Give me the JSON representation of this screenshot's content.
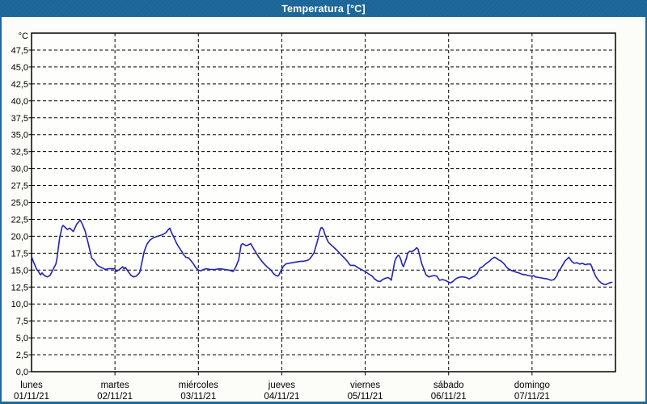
{
  "window": {
    "title": "Temperatura [°C]"
  },
  "colors": {
    "titlebar_bg": "#1e699c",
    "titlebar_text": "#ffffff",
    "frame_border": "#1e699c",
    "background": "#fcfdf8",
    "plot_bg": "#fefefc",
    "plot_border": "#000000",
    "grid": "#000000",
    "line": "#2323b4",
    "label": "#000000"
  },
  "chart_data": {
    "type": "line",
    "title": "Temperatura [°C]",
    "y_unit_label": "°C",
    "ylim": [
      0,
      50
    ],
    "ytick_step": 2.5,
    "ytick_labels": [
      "0,0",
      "2,5",
      "5,0",
      "7,5",
      "10,0",
      "12,5",
      "15,0",
      "17,5",
      "20,0",
      "22,5",
      "25,0",
      "27,5",
      "30,0",
      "32,5",
      "35,0",
      "37,5",
      "40,0",
      "42,5",
      "45,0",
      "47,5"
    ],
    "grid": "dashed",
    "xlim_hours": [
      0,
      168
    ],
    "x_days": [
      {
        "name": "lunes",
        "date": "01/11/21"
      },
      {
        "name": "martes",
        "date": "02/11/21"
      },
      {
        "name": "miércoles",
        "date": "03/11/21"
      },
      {
        "name": "jueves",
        "date": "04/11/21"
      },
      {
        "name": "viernes",
        "date": "05/11/21"
      },
      {
        "name": "sábado",
        "date": "06/11/21"
      },
      {
        "name": "domingo",
        "date": "07/11/21"
      }
    ],
    "series": [
      {
        "name": "Temperatura",
        "color": "#2323b4",
        "points_hour_degC": [
          [
            0,
            17.0
          ],
          [
            0.5,
            16.3
          ],
          [
            1,
            15.7
          ],
          [
            1.5,
            15.1
          ],
          [
            2,
            14.8
          ],
          [
            2.3,
            14.5
          ],
          [
            2.6,
            14.3
          ],
          [
            3,
            14.6
          ],
          [
            3.3,
            14.4
          ],
          [
            3.7,
            14.2
          ],
          [
            4.5,
            14.0
          ],
          [
            5.3,
            14.2
          ],
          [
            6,
            14.9
          ],
          [
            7,
            15.9
          ],
          [
            7.3,
            16.7
          ],
          [
            7.6,
            17.9
          ],
          [
            8.1,
            19.8
          ],
          [
            8.8,
            21.4
          ],
          [
            9.1,
            21.6
          ],
          [
            9.5,
            21.4
          ],
          [
            10.3,
            21.0
          ],
          [
            11,
            21.2
          ],
          [
            12,
            20.7
          ],
          [
            13,
            21.8
          ],
          [
            14,
            22.4
          ],
          [
            14.6,
            21.8
          ],
          [
            15.4,
            20.8
          ],
          [
            16.1,
            19.4
          ],
          [
            16.9,
            17.7
          ],
          [
            17.3,
            16.8
          ],
          [
            18.1,
            16.4
          ],
          [
            18.8,
            15.8
          ],
          [
            19.6,
            15.5
          ],
          [
            20.5,
            15.3
          ],
          [
            21.2,
            15.1
          ],
          [
            22.1,
            15.2
          ],
          [
            23,
            15.2
          ],
          [
            24,
            15.2
          ],
          [
            24.3,
            14.8
          ],
          [
            25.1,
            15.0
          ],
          [
            25.8,
            15.3
          ],
          [
            26.2,
            15.5
          ],
          [
            26.6,
            15.2
          ],
          [
            27,
            15.4
          ],
          [
            27.8,
            14.8
          ],
          [
            28.5,
            14.3
          ],
          [
            29.3,
            14.0
          ],
          [
            30.1,
            14.1
          ],
          [
            30.9,
            14.5
          ],
          [
            31.3,
            14.9
          ],
          [
            31.6,
            15.8
          ],
          [
            32,
            16.7
          ],
          [
            32.4,
            17.7
          ],
          [
            32.8,
            18.3
          ],
          [
            33.3,
            18.9
          ],
          [
            34,
            19.4
          ],
          [
            35.1,
            19.8
          ],
          [
            36.3,
            20.0
          ],
          [
            37.5,
            20.2
          ],
          [
            38.6,
            20.5
          ],
          [
            39.4,
            21.0
          ],
          [
            39.8,
            21.2
          ],
          [
            40.2,
            20.6
          ],
          [
            41,
            19.8
          ],
          [
            41.7,
            19.0
          ],
          [
            42.5,
            18.3
          ],
          [
            43.3,
            17.7
          ],
          [
            43.7,
            17.3
          ],
          [
            44.4,
            16.9
          ],
          [
            45.2,
            16.8
          ],
          [
            46,
            16.3
          ],
          [
            46.6,
            15.9
          ],
          [
            47.2,
            15.4
          ],
          [
            48,
            15.0
          ],
          [
            48.7,
            14.9
          ],
          [
            49.5,
            15.1
          ],
          [
            50.3,
            15.2
          ],
          [
            51.4,
            15.1
          ],
          [
            52.8,
            15.1
          ],
          [
            54.2,
            15.2
          ],
          [
            55.6,
            15.1
          ],
          [
            56.8,
            15.0
          ],
          [
            58,
            14.8
          ],
          [
            58.8,
            15.5
          ],
          [
            59.6,
            16.5
          ],
          [
            60.3,
            18.7
          ],
          [
            60.7,
            18.9
          ],
          [
            61.4,
            18.7
          ],
          [
            61.9,
            18.6
          ],
          [
            62.6,
            18.8
          ],
          [
            63.1,
            18.9
          ],
          [
            63.5,
            18.5
          ],
          [
            64.2,
            17.9
          ],
          [
            65.4,
            16.9
          ],
          [
            66.6,
            16.1
          ],
          [
            67.7,
            15.5
          ],
          [
            68.9,
            15.0
          ],
          [
            69.6,
            14.5
          ],
          [
            70.3,
            14.2
          ],
          [
            70.8,
            14.1
          ],
          [
            71.2,
            14.3
          ],
          [
            71.9,
            15.1
          ],
          [
            72.5,
            15.6
          ],
          [
            73.1,
            15.9
          ],
          [
            73.9,
            16.0
          ],
          [
            75.1,
            16.1
          ],
          [
            76.3,
            16.2
          ],
          [
            77.4,
            16.3
          ],
          [
            78.2,
            16.3
          ],
          [
            79,
            16.4
          ],
          [
            79.7,
            16.5
          ],
          [
            80.1,
            16.7
          ],
          [
            80.7,
            17.1
          ],
          [
            81.3,
            17.6
          ],
          [
            81.7,
            18.3
          ],
          [
            82.1,
            19.0
          ],
          [
            82.5,
            19.8
          ],
          [
            82.8,
            20.5
          ],
          [
            83.2,
            21.2
          ],
          [
            83.5,
            21.3
          ],
          [
            84,
            21.0
          ],
          [
            84.4,
            20.3
          ],
          [
            84.8,
            19.8
          ],
          [
            85.2,
            19.3
          ],
          [
            85.6,
            19.0
          ],
          [
            86.7,
            18.5
          ],
          [
            87.9,
            17.9
          ],
          [
            89,
            17.3
          ],
          [
            90.2,
            16.7
          ],
          [
            91,
            16.2
          ],
          [
            91.4,
            15.9
          ],
          [
            91.8,
            15.7
          ],
          [
            92.9,
            15.7
          ],
          [
            94.1,
            15.3
          ],
          [
            95.2,
            15.0
          ],
          [
            96,
            14.8
          ],
          [
            96.8,
            14.5
          ],
          [
            98,
            14.1
          ],
          [
            98.7,
            13.7
          ],
          [
            99.5,
            13.4
          ],
          [
            100.3,
            13.3
          ],
          [
            101,
            13.6
          ],
          [
            101.8,
            13.8
          ],
          [
            102.6,
            13.9
          ],
          [
            103.2,
            13.7
          ],
          [
            103.5,
            13.5
          ],
          [
            104,
            14.9
          ],
          [
            104.5,
            16.3
          ],
          [
            104.9,
            16.8
          ],
          [
            105.5,
            17.2
          ],
          [
            105.8,
            17.1
          ],
          [
            106.3,
            16.5
          ],
          [
            106.6,
            15.9
          ],
          [
            107,
            15.5
          ],
          [
            107.4,
            16.1
          ],
          [
            107.9,
            16.8
          ],
          [
            108.2,
            17.5
          ],
          [
            108.8,
            17.8
          ],
          [
            109.3,
            17.7
          ],
          [
            110,
            17.9
          ],
          [
            110.4,
            18.1
          ],
          [
            110.8,
            18.3
          ],
          [
            111.2,
            18.1
          ],
          [
            111.5,
            17.5
          ],
          [
            111.9,
            16.7
          ],
          [
            112.3,
            15.9
          ],
          [
            112.7,
            15.4
          ],
          [
            113.1,
            14.8
          ],
          [
            113.5,
            14.3
          ],
          [
            114.3,
            14.0
          ],
          [
            115,
            14.1
          ],
          [
            115.9,
            14.2
          ],
          [
            116.6,
            14.1
          ],
          [
            117.4,
            13.5
          ],
          [
            118.2,
            13.6
          ],
          [
            119,
            13.5
          ],
          [
            119.7,
            13.3
          ],
          [
            120.5,
            13.1
          ],
          [
            121.2,
            13.3
          ],
          [
            122,
            13.7
          ],
          [
            122.8,
            13.9
          ],
          [
            123.6,
            14.0
          ],
          [
            124.3,
            14.0
          ],
          [
            125.1,
            13.9
          ],
          [
            125.9,
            13.7
          ],
          [
            126.6,
            13.9
          ],
          [
            127.4,
            14.1
          ],
          [
            128.2,
            14.5
          ],
          [
            129,
            15.3
          ],
          [
            129.8,
            15.5
          ],
          [
            130.6,
            15.9
          ],
          [
            131.7,
            16.3
          ],
          [
            132.5,
            16.7
          ],
          [
            133.2,
            16.9
          ],
          [
            133.6,
            16.8
          ],
          [
            134.4,
            16.5
          ],
          [
            135.2,
            16.3
          ],
          [
            136,
            15.9
          ],
          [
            136.7,
            15.4
          ],
          [
            137.5,
            15.1
          ],
          [
            138.3,
            14.9
          ],
          [
            139.4,
            14.7
          ],
          [
            140.2,
            14.6
          ],
          [
            141,
            14.4
          ],
          [
            142.2,
            14.3
          ],
          [
            142.9,
            14.2
          ],
          [
            144,
            14.1
          ],
          [
            144.5,
            14.2
          ],
          [
            144.9,
            14.0
          ],
          [
            146.1,
            13.9
          ],
          [
            147.2,
            13.8
          ],
          [
            148.4,
            13.7
          ],
          [
            149.5,
            13.5
          ],
          [
            150.3,
            13.6
          ],
          [
            151.1,
            14.1
          ],
          [
            151.5,
            14.7
          ],
          [
            152.3,
            15.3
          ],
          [
            153,
            15.9
          ],
          [
            153.4,
            16.3
          ],
          [
            154.2,
            16.7
          ],
          [
            154.6,
            16.9
          ],
          [
            155.4,
            16.3
          ],
          [
            156.1,
            16.0
          ],
          [
            156.9,
            16.1
          ],
          [
            157.7,
            15.9
          ],
          [
            158.5,
            16.0
          ],
          [
            159.3,
            15.8
          ],
          [
            160,
            15.9
          ],
          [
            160.8,
            15.9
          ],
          [
            161.2,
            15.5
          ],
          [
            161.6,
            14.9
          ],
          [
            162.3,
            14.1
          ],
          [
            163.1,
            13.5
          ],
          [
            163.9,
            13.1
          ],
          [
            164.7,
            12.9
          ],
          [
            165.4,
            12.9
          ],
          [
            166.2,
            13.1
          ],
          [
            167,
            13.2
          ]
        ]
      }
    ]
  }
}
